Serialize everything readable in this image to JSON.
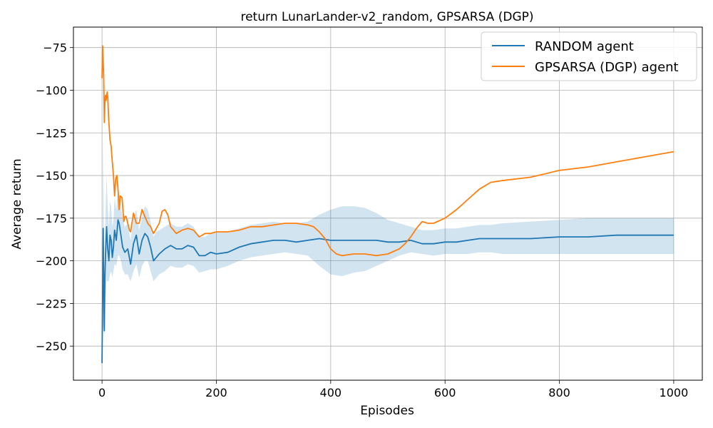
{
  "chart_data": {
    "type": "line",
    "title": "return LunarLander-v2_random, GPSARSA (DGP)",
    "xlabel": "Episodes",
    "ylabel": "Average return",
    "xlim": [
      -50,
      1050
    ],
    "ylim": [
      -270,
      -63
    ],
    "xticks": [
      0,
      200,
      400,
      600,
      800,
      1000
    ],
    "yticks": [
      -250,
      -225,
      -200,
      -175,
      -150,
      -125,
      -100,
      -75
    ],
    "xtick_labels": [
      "0",
      "200",
      "400",
      "600",
      "800",
      "1000"
    ],
    "ytick_labels": [
      "−250",
      "−225",
      "−200",
      "−175",
      "−150",
      "−125",
      "−100",
      "−75"
    ],
    "grid": true,
    "legend_position": "top-right",
    "series": [
      {
        "name": "RANDOM agent",
        "color": "#1f77b4",
        "x": [
          0,
          2,
          3,
          4,
          5,
          6,
          8,
          10,
          12,
          14,
          16,
          18,
          20,
          22,
          25,
          28,
          30,
          33,
          36,
          40,
          45,
          50,
          55,
          60,
          65,
          70,
          75,
          80,
          85,
          90,
          95,
          100,
          110,
          120,
          130,
          140,
          150,
          160,
          170,
          180,
          190,
          200,
          220,
          240,
          260,
          280,
          300,
          320,
          340,
          360,
          380,
          400,
          420,
          440,
          460,
          480,
          500,
          520,
          540,
          560,
          580,
          600,
          620,
          640,
          660,
          680,
          700,
          750,
          800,
          850,
          900,
          950,
          1000
        ],
        "y": [
          -260,
          -181,
          -215,
          -241,
          -210,
          -198,
          -180,
          -193,
          -200,
          -185,
          -188,
          -198,
          -192,
          -182,
          -188,
          -176,
          -178,
          -185,
          -192,
          -195,
          -193,
          -202,
          -190,
          -185,
          -196,
          -188,
          -184,
          -186,
          -192,
          -200,
          -198,
          -196,
          -193,
          -191,
          -193,
          -193,
          -191,
          -192,
          -197,
          -197,
          -195,
          -196,
          -195,
          -192,
          -190,
          -189,
          -188,
          -188,
          -189,
          -188,
          -187,
          -188,
          -188,
          -188,
          -188,
          -188,
          -189,
          -189,
          -188,
          -190,
          -190,
          -189,
          -189,
          -188,
          -187,
          -187,
          -187,
          -187,
          -186,
          -186,
          -185,
          -185,
          -185
        ],
        "band_lower": [
          -260,
          -240,
          -238,
          -245,
          -230,
          -222,
          -212,
          -212,
          -212,
          -208,
          -206,
          -210,
          -206,
          -202,
          -203,
          -197,
          -197,
          -200,
          -205,
          -208,
          -208,
          -212,
          -206,
          -202,
          -210,
          -203,
          -200,
          -200,
          -206,
          -212,
          -210,
          -208,
          -206,
          -203,
          -204,
          -204,
          -202,
          -203,
          -207,
          -206,
          -205,
          -205,
          -203,
          -200,
          -198,
          -197,
          -196,
          -195,
          -196,
          -197,
          -203,
          -208,
          -209,
          -207,
          -206,
          -203,
          -200,
          -197,
          -195,
          -196,
          -197,
          -196,
          -196,
          -196,
          -195,
          -195,
          -196,
          -196,
          -196,
          -196,
          -196,
          -196,
          -196
        ],
        "band_upper": [
          -260,
          -130,
          -168,
          -205,
          -185,
          -172,
          -150,
          -168,
          -180,
          -165,
          -168,
          -180,
          -176,
          -163,
          -170,
          -158,
          -160,
          -168,
          -175,
          -180,
          -178,
          -188,
          -175,
          -170,
          -182,
          -175,
          -168,
          -170,
          -177,
          -186,
          -183,
          -182,
          -180,
          -178,
          -180,
          -180,
          -178,
          -180,
          -186,
          -186,
          -184,
          -183,
          -183,
          -181,
          -179,
          -178,
          -177,
          -178,
          -178,
          -177,
          -173,
          -170,
          -168,
          -168,
          -169,
          -172,
          -176,
          -178,
          -180,
          -182,
          -182,
          -181,
          -181,
          -180,
          -179,
          -179,
          -178,
          -177,
          -176,
          -175,
          -175,
          -175,
          -175
        ]
      },
      {
        "name": "GPSARSA (DGP) agent",
        "color": "#ff7f0e",
        "x": [
          0,
          1,
          2,
          3,
          4,
          5,
          6,
          7,
          8,
          9,
          10,
          11,
          12,
          14,
          16,
          18,
          20,
          22,
          24,
          26,
          28,
          30,
          32,
          35,
          38,
          40,
          42,
          45,
          48,
          50,
          55,
          60,
          65,
          70,
          75,
          80,
          85,
          90,
          95,
          100,
          105,
          110,
          115,
          120,
          125,
          130,
          140,
          150,
          160,
          170,
          180,
          190,
          200,
          220,
          240,
          260,
          280,
          300,
          320,
          340,
          360,
          370,
          380,
          390,
          400,
          410,
          420,
          440,
          460,
          480,
          500,
          520,
          530,
          540,
          550,
          560,
          570,
          580,
          600,
          620,
          640,
          660,
          680,
          700,
          750,
          800,
          850,
          900,
          950,
          1000
        ],
        "y": [
          -93,
          -74,
          -83,
          -93,
          -119,
          -108,
          -103,
          -106,
          -104,
          -101,
          -104,
          -112,
          -119,
          -129,
          -133,
          -142,
          -150,
          -162,
          -152,
          -150,
          -158,
          -170,
          -162,
          -163,
          -177,
          -174,
          -174,
          -178,
          -182,
          -183,
          -172,
          -178,
          -178,
          -170,
          -174,
          -178,
          -180,
          -184,
          -181,
          -178,
          -171,
          -170,
          -173,
          -180,
          -182,
          -184,
          -182,
          -181,
          -182,
          -186,
          -184,
          -184,
          -183,
          -183,
          -182,
          -180,
          -180,
          -179,
          -178,
          -178,
          -179,
          -180,
          -183,
          -187,
          -193,
          -196,
          -197,
          -196,
          -196,
          -197,
          -196,
          -193,
          -190,
          -186,
          -181,
          -177,
          -178,
          -178,
          -175,
          -170,
          -164,
          -158,
          -154,
          -153,
          -151,
          -147,
          -145,
          -142,
          -139,
          -136
        ]
      }
    ]
  }
}
